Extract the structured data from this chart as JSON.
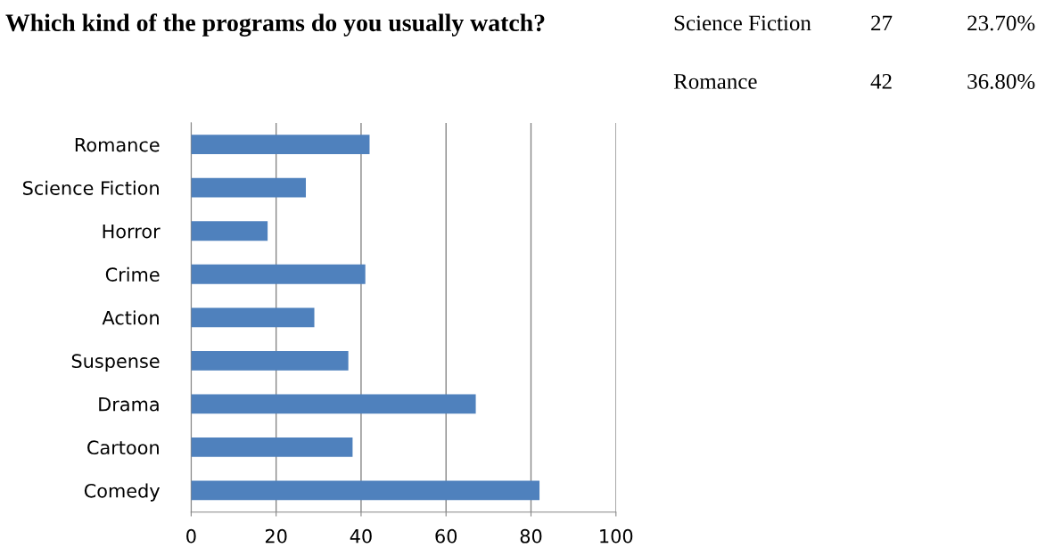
{
  "chart_data": {
    "type": "bar",
    "orientation": "horizontal",
    "title": "Which kind of the programs do you usually watch?",
    "categories": [
      "Romance",
      "Science Fiction",
      "Horror",
      "Crime",
      "Action",
      "Suspense",
      "Drama",
      "Cartoon",
      "Comedy"
    ],
    "values": [
      42,
      27,
      18,
      41,
      29,
      37,
      67,
      38,
      82
    ],
    "color": "#4f81bd",
    "xlim": [
      0,
      100
    ],
    "xticks": [
      0,
      20,
      40,
      60,
      80,
      100
    ],
    "grid": "x",
    "annotations": [
      "Science Fiction",
      "27",
      "23.70%",
      "Romance",
      "42",
      "36.80%"
    ]
  }
}
